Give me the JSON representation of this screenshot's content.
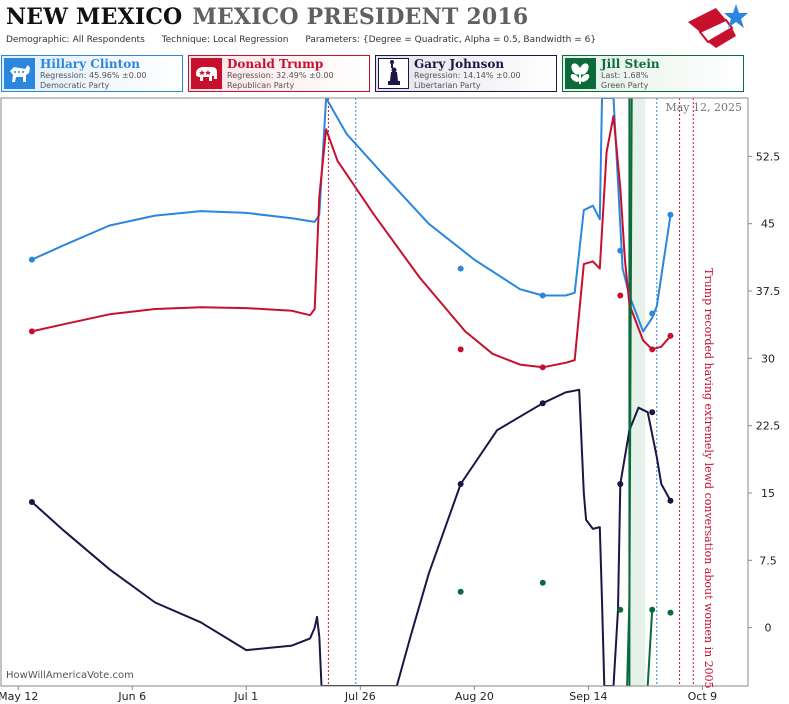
{
  "header": {
    "state": "NEW MEXICO",
    "race": "MEXICO PRESIDENT 2016",
    "demographic_label": "Demographic:",
    "demographic": "All Respondents",
    "technique_label": "Technique:",
    "technique": "Local Regression",
    "parameters_label": "Parameters:",
    "parameters": "{Degree = Quadratic, Alpha = 0.5, Bandwidth = 6}"
  },
  "candidates": [
    {
      "name": "Hillary Clinton",
      "stat": "Regression: 45.96% ±0.00",
      "party": "Democratic Party",
      "color": "#2b86de",
      "bg": "#dfeefc",
      "icon": "donkey-icon"
    },
    {
      "name": "Donald Trump",
      "stat": "Regression: 32.49% ±0.00",
      "party": "Republican Party",
      "color": "#c8102e",
      "bg": "#fbe3e7",
      "icon": "elephant-icon"
    },
    {
      "name": "Gary Johnson",
      "stat": "Regression: 14.14% ±0.00",
      "party": "Libertarian Party",
      "color": "#1b1646",
      "bg": "#e3e2ea",
      "icon": "statue-of-liberty-icon"
    },
    {
      "name": "Jill Stein",
      "stat": "Last: 1.68%",
      "party": "Green Party",
      "color": "#0b6b3a",
      "bg": "#e2f0e7",
      "icon": "leaf-icon"
    }
  ],
  "date_label": "May 12, 2025",
  "watermark": "HowWillAmericaVote.com",
  "annotation": "Trump recorded having extremely lewd conversation about women in 2005",
  "chart_data": {
    "type": "line",
    "xlabel": "",
    "ylabel": "",
    "x_ticks": [
      "May 12",
      "Jun 6",
      "Jul 1",
      "Jul 26",
      "Aug 20",
      "Sep 14",
      "Oct 9"
    ],
    "x_range_days": [
      0,
      150
    ],
    "ylim": [
      -6.5,
      59
    ],
    "y_ticks": [
      0,
      7.5,
      15,
      22.5,
      30,
      37.5,
      45,
      52.5
    ],
    "grid": false,
    "series": [
      {
        "name": "Hillary Clinton",
        "color": "#2b86de",
        "curve": [
          [
            3,
            41
          ],
          [
            10,
            42.6
          ],
          [
            20,
            44.8
          ],
          [
            30,
            45.9
          ],
          [
            40,
            46.4
          ],
          [
            50,
            46.2
          ],
          [
            60,
            45.6
          ],
          [
            65,
            45.2
          ],
          [
            66,
            46
          ],
          [
            67.5,
            59
          ],
          [
            72,
            55
          ],
          [
            80,
            50.5
          ],
          [
            90,
            45
          ],
          [
            100,
            41
          ],
          [
            110,
            37.7
          ],
          [
            115,
            37
          ],
          [
            120,
            37
          ],
          [
            122,
            37.3
          ],
          [
            124,
            46.5
          ],
          [
            126,
            47
          ],
          [
            127.5,
            45.5
          ],
          [
            128,
            59
          ],
          [
            130.5,
            59
          ],
          [
            132.5,
            40
          ],
          [
            134,
            37
          ],
          [
            137,
            33
          ],
          [
            139,
            34.5
          ],
          [
            140,
            35.8
          ],
          [
            143,
            45.96
          ]
        ],
        "points": [
          [
            3,
            41
          ],
          [
            97,
            40
          ],
          [
            115,
            37
          ],
          [
            132,
            42
          ],
          [
            139,
            35
          ],
          [
            143,
            46
          ]
        ]
      },
      {
        "name": "Donald Trump",
        "color": "#c8102e",
        "curve": [
          [
            3,
            33
          ],
          [
            10,
            33.8
          ],
          [
            20,
            34.9
          ],
          [
            30,
            35.5
          ],
          [
            40,
            35.7
          ],
          [
            50,
            35.6
          ],
          [
            60,
            35.3
          ],
          [
            64,
            34.8
          ],
          [
            65,
            35.5
          ],
          [
            66,
            48
          ],
          [
            67.5,
            55.5
          ],
          [
            70,
            52
          ],
          [
            78,
            46
          ],
          [
            88,
            39
          ],
          [
            98,
            33
          ],
          [
            104,
            30.5
          ],
          [
            110,
            29.3
          ],
          [
            115,
            29
          ],
          [
            120,
            29.5
          ],
          [
            122,
            29.8
          ],
          [
            124,
            40.5
          ],
          [
            126,
            40.8
          ],
          [
            127.5,
            40
          ],
          [
            129,
            53
          ],
          [
            130.5,
            57
          ],
          [
            132,
            49
          ],
          [
            133,
            41
          ],
          [
            134,
            36
          ],
          [
            137,
            32
          ],
          [
            139,
            31
          ],
          [
            141,
            31.3
          ],
          [
            143,
            32.49
          ]
        ],
        "points": [
          [
            3,
            33
          ],
          [
            97,
            31
          ],
          [
            115,
            29
          ],
          [
            132,
            37
          ],
          [
            139,
            31
          ],
          [
            143,
            32.5
          ]
        ]
      },
      {
        "name": "Gary Johnson",
        "color": "#1b1646",
        "curve": [
          [
            3,
            14
          ],
          [
            10,
            10.8
          ],
          [
            20,
            6.5
          ],
          [
            30,
            2.8
          ],
          [
            40,
            0.6
          ],
          [
            50,
            -2.5
          ],
          [
            60,
            -2
          ],
          [
            64,
            -1.2
          ],
          [
            65,
            0
          ],
          [
            65.5,
            1.2
          ],
          [
            66,
            -1
          ],
          [
            66.5,
            -6.5
          ],
          [
            83,
            -6.5
          ],
          [
            86,
            -1
          ],
          [
            90,
            6
          ],
          [
            97,
            16
          ],
          [
            105,
            22
          ],
          [
            115,
            25
          ],
          [
            120,
            26.2
          ],
          [
            123,
            26.5
          ],
          [
            124,
            15
          ],
          [
            124.5,
            12
          ],
          [
            126,
            11
          ],
          [
            127.5,
            11.2
          ],
          [
            128,
            3
          ],
          [
            128.5,
            -6.5
          ],
          [
            130.5,
            -6.5
          ],
          [
            131.5,
            2
          ],
          [
            132,
            16
          ],
          [
            134,
            22
          ],
          [
            136,
            24.5
          ],
          [
            138,
            24
          ],
          [
            140,
            19
          ],
          [
            141,
            16
          ],
          [
            143,
            14.14
          ]
        ],
        "points": [
          [
            3,
            14
          ],
          [
            97,
            16
          ],
          [
            115,
            25
          ],
          [
            132,
            16
          ],
          [
            139,
            24
          ],
          [
            143,
            14.14
          ]
        ]
      },
      {
        "name": "Jill Stein",
        "color": "#0b6b3a",
        "curve": [
          [
            133.5,
            -6.5
          ],
          [
            134,
            3
          ],
          [
            134.5,
            59
          ]
        ],
        "curve2": [
          [
            138,
            -6.5
          ],
          [
            139,
            2
          ]
        ],
        "points": [
          [
            97,
            4
          ],
          [
            115,
            5
          ],
          [
            132,
            2
          ],
          [
            139,
            2
          ],
          [
            143,
            1.68
          ]
        ]
      }
    ],
    "event_lines": [
      {
        "x": 68,
        "color": "#c8102e"
      },
      {
        "x": 74,
        "color": "#2b86de"
      },
      {
        "x": 140,
        "color": "#2b86de"
      },
      {
        "x": 145,
        "color": "#c8102e"
      },
      {
        "x": 148,
        "color": "#c8102e"
      }
    ],
    "debate_line": {
      "x": 134,
      "color": "#0b6b3a"
    },
    "shaded_band": [
      134,
      137.5
    ]
  }
}
